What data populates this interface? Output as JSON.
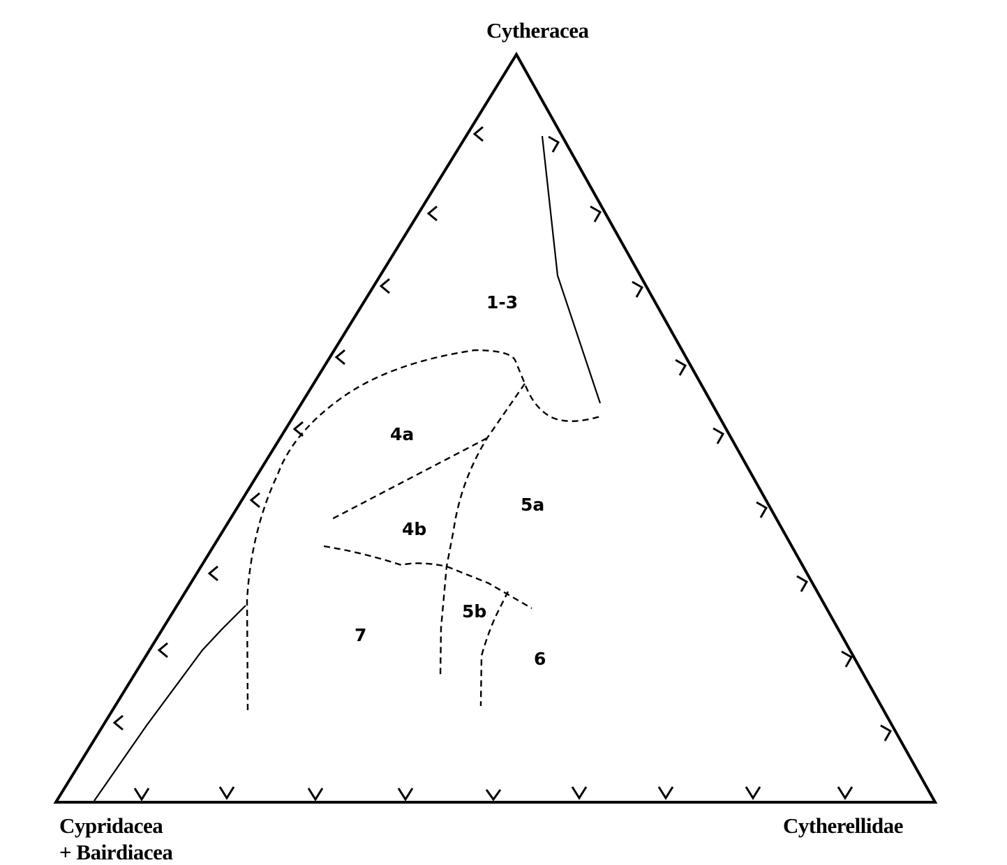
{
  "vertices": {
    "top": "Cytheracea",
    "left_line1": "Cypridacea",
    "left_line2": "+ Bairdiacea",
    "right": "Cytherellidae"
  },
  "zones": {
    "z13": "1-3",
    "z4a": "4a",
    "z4b": "4b",
    "z5a": "5a",
    "z5b": "5b",
    "z6": "6",
    "z7": "7"
  },
  "colors": {
    "line": "#000000",
    "background": "#ffffff"
  }
}
